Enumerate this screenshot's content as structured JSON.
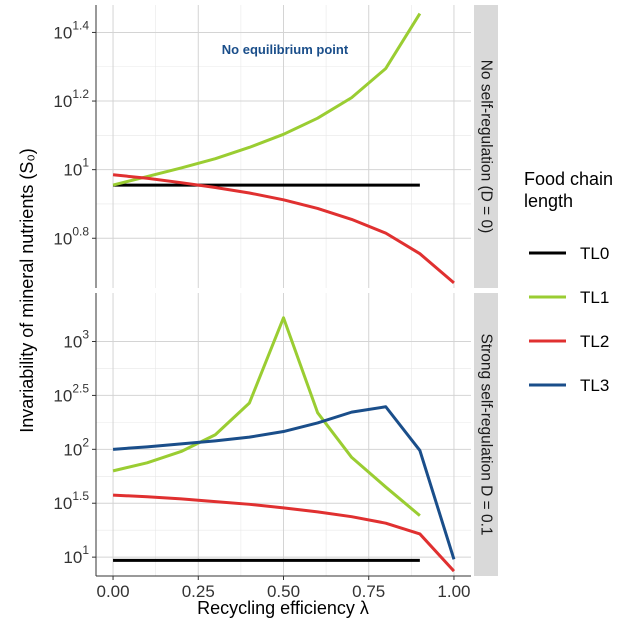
{
  "chart_data": {
    "type": "line",
    "xlabel": "Recycling efficiency λ",
    "ylabel": "Invariability of mineral nutrients (S₀)",
    "y_scale": "log10",
    "x_ticks": [
      0,
      0.25,
      0.5,
      0.75,
      1.0
    ],
    "x_tick_labels": [
      "0.00",
      "0.25",
      "0.50",
      "0.75",
      "1.00"
    ],
    "xlim": [
      -0.05,
      1.05
    ],
    "legend": {
      "title": [
        "Food chain",
        "length"
      ],
      "position": "right",
      "entries": [
        {
          "label": "TL0",
          "color": "#000000"
        },
        {
          "label": "TL1",
          "color": "#9ACD32"
        },
        {
          "label": "TL2",
          "color": "#E03030"
        },
        {
          "label": "TL3",
          "color": "#1A4E8A"
        }
      ]
    },
    "panels": [
      {
        "strip": "No self-regulation (D = 0)",
        "annotation": "No equilibrium point",
        "ylim_log10": [
          0.655,
          1.48
        ],
        "y_ticks": [
          {
            "base": "10",
            "exp": "0.8",
            "log10": 0.8
          },
          {
            "base": "10",
            "exp": "1",
            "log10": 1.0
          },
          {
            "base": "10",
            "exp": "1.2",
            "log10": 1.2
          },
          {
            "base": "10",
            "exp": "1.4",
            "log10": 1.4
          }
        ],
        "series": [
          {
            "name": "TL0",
            "color": "#000000",
            "x": [
              0,
              0.9
            ],
            "log10_y": [
              0.955,
              0.955
            ]
          },
          {
            "name": "TL1",
            "color": "#9ACD32",
            "x": [
              0,
              0.1,
              0.2,
              0.3,
              0.4,
              0.5,
              0.6,
              0.7,
              0.8,
              0.9
            ],
            "log10_y": [
              0.955,
              0.98,
              1.005,
              1.032,
              1.065,
              1.103,
              1.15,
              1.21,
              1.295,
              1.455
            ]
          },
          {
            "name": "TL2",
            "color": "#E03030",
            "x": [
              0,
              0.1,
              0.2,
              0.3,
              0.4,
              0.5,
              0.6,
              0.7,
              0.8,
              0.9,
              1.0
            ],
            "log10_y": [
              0.985,
              0.975,
              0.962,
              0.948,
              0.932,
              0.912,
              0.887,
              0.855,
              0.815,
              0.755,
              0.67
            ]
          }
        ]
      },
      {
        "strip": "Strong self-regulation D = 0.1",
        "ylim_log10": [
          0.825,
          3.45
        ],
        "y_ticks": [
          {
            "base": "10",
            "exp": "1",
            "log10": 1.0
          },
          {
            "base": "10",
            "exp": "1.5",
            "log10": 1.5
          },
          {
            "base": "10",
            "exp": "2",
            "log10": 2.0
          },
          {
            "base": "10",
            "exp": "2.5",
            "log10": 2.5
          },
          {
            "base": "10",
            "exp": "3",
            "log10": 3.0
          }
        ],
        "series": [
          {
            "name": "TL0",
            "color": "#000000",
            "x": [
              0,
              0.9
            ],
            "log10_y": [
              0.97,
              0.97
            ]
          },
          {
            "name": "TL1",
            "color": "#9ACD32",
            "x": [
              0,
              0.1,
              0.2,
              0.3,
              0.4,
              0.5,
              0.6,
              0.7,
              0.8,
              0.9
            ],
            "log10_y": [
              1.8,
              1.875,
              1.98,
              2.135,
              2.43,
              3.22,
              2.34,
              1.925,
              1.65,
              1.385
            ]
          },
          {
            "name": "TL2",
            "color": "#E03030",
            "x": [
              0,
              0.1,
              0.2,
              0.3,
              0.4,
              0.5,
              0.6,
              0.7,
              0.8,
              0.9,
              1.0
            ],
            "log10_y": [
              1.575,
              1.56,
              1.54,
              1.515,
              1.49,
              1.457,
              1.42,
              1.375,
              1.315,
              1.215,
              0.87
            ]
          },
          {
            "name": "TL3",
            "color": "#1A4E8A",
            "x": [
              0,
              0.1,
              0.2,
              0.3,
              0.4,
              0.5,
              0.6,
              0.7,
              0.8,
              0.9,
              1.0
            ],
            "log10_y": [
              2.0,
              2.023,
              2.05,
              2.078,
              2.113,
              2.165,
              2.245,
              2.345,
              2.395,
              1.99,
              0.98
            ]
          }
        ]
      }
    ]
  }
}
